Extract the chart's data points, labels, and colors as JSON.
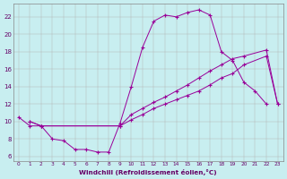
{
  "xlabel": "Windchill (Refroidissement éolien,°C)",
  "bg_color": "#c8eef0",
  "grid_color": "#b0b0b0",
  "line_color": "#990099",
  "xlim": [
    -0.5,
    23.5
  ],
  "ylim": [
    5.5,
    23.5
  ],
  "xticks": [
    0,
    1,
    2,
    3,
    4,
    5,
    6,
    7,
    8,
    9,
    10,
    11,
    12,
    13,
    14,
    15,
    16,
    17,
    18,
    19,
    20,
    21,
    22,
    23
  ],
  "yticks": [
    6,
    8,
    10,
    12,
    14,
    16,
    18,
    20,
    22
  ],
  "line1_x": [
    0,
    1,
    2,
    3,
    4,
    5,
    6,
    7,
    8,
    9,
    10,
    11,
    12,
    13,
    14,
    15,
    16,
    17,
    18,
    19,
    20,
    21,
    22
  ],
  "line1_y": [
    10.5,
    9.5,
    9.5,
    8.0,
    7.8,
    6.8,
    6.8,
    6.5,
    6.5,
    9.8,
    14.0,
    18.5,
    21.5,
    22.2,
    22.0,
    22.5,
    22.8,
    22.2,
    18.0,
    17.0,
    14.5,
    13.5,
    12.0
  ],
  "line2_x": [
    1,
    2,
    9,
    10,
    11,
    12,
    13,
    14,
    15,
    16,
    17,
    18,
    19,
    20,
    22,
    23
  ],
  "line2_y": [
    10.0,
    9.5,
    9.5,
    10.2,
    10.8,
    11.5,
    12.0,
    12.5,
    13.0,
    13.5,
    14.2,
    15.0,
    15.5,
    16.5,
    17.5,
    12.0
  ],
  "line3_x": [
    1,
    2,
    9,
    10,
    11,
    12,
    13,
    14,
    15,
    16,
    17,
    18,
    19,
    20,
    22,
    23
  ],
  "line3_y": [
    10.0,
    9.5,
    9.5,
    10.8,
    11.5,
    12.2,
    12.8,
    13.5,
    14.2,
    15.0,
    15.8,
    16.5,
    17.2,
    17.5,
    18.2,
    12.0
  ]
}
